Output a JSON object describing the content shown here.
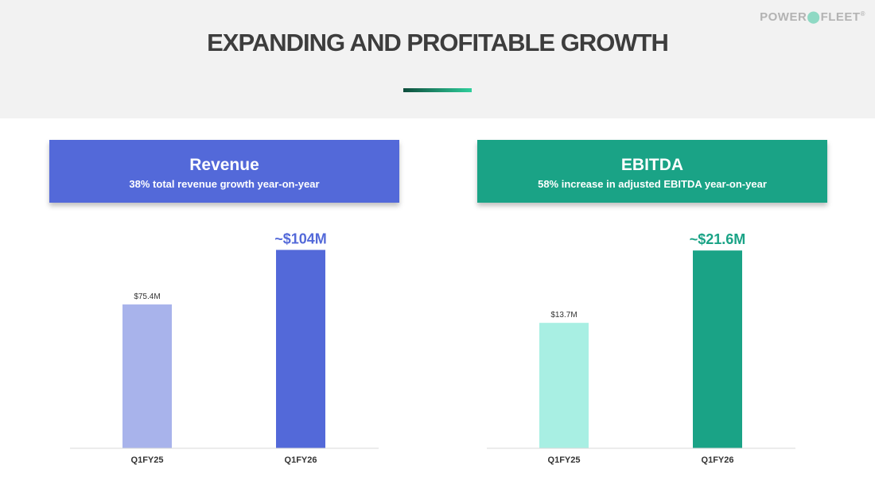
{
  "header": {
    "title": "EXPANDING AND PROFITABLE GROWTH",
    "logo_text": "POWER",
    "logo_text_2": "FLEET",
    "logo_mark": "®"
  },
  "panels": {
    "revenue": {
      "title": "Revenue",
      "subtitle": "38% total revenue growth year-on-year",
      "color": "#5369d9"
    },
    "ebitda": {
      "title": "EBITDA",
      "subtitle": "58% increase in adjusted EBITDA year-on-year",
      "color": "#1aa386"
    }
  },
  "chart_data": [
    {
      "type": "bar",
      "name": "revenue",
      "categories": [
        "Q1FY25",
        "Q1FY26"
      ],
      "values": [
        75.4,
        104
      ],
      "labels": [
        "$75.4M",
        "~$104M"
      ],
      "colors": [
        "#a8b3eb",
        "#5369d9"
      ],
      "label_colors": [
        "#333333",
        "#5369d9"
      ],
      "ylim": [
        0,
        120
      ],
      "grid": false
    },
    {
      "type": "bar",
      "name": "ebitda",
      "categories": [
        "Q1FY25",
        "Q1FY26"
      ],
      "values": [
        13.7,
        21.6
      ],
      "labels": [
        "$13.7M",
        "~$21.6M"
      ],
      "colors": [
        "#a8efe3",
        "#1aa386"
      ],
      "label_colors": [
        "#333333",
        "#1aa386"
      ],
      "ylim": [
        0,
        25
      ],
      "grid": false
    }
  ]
}
